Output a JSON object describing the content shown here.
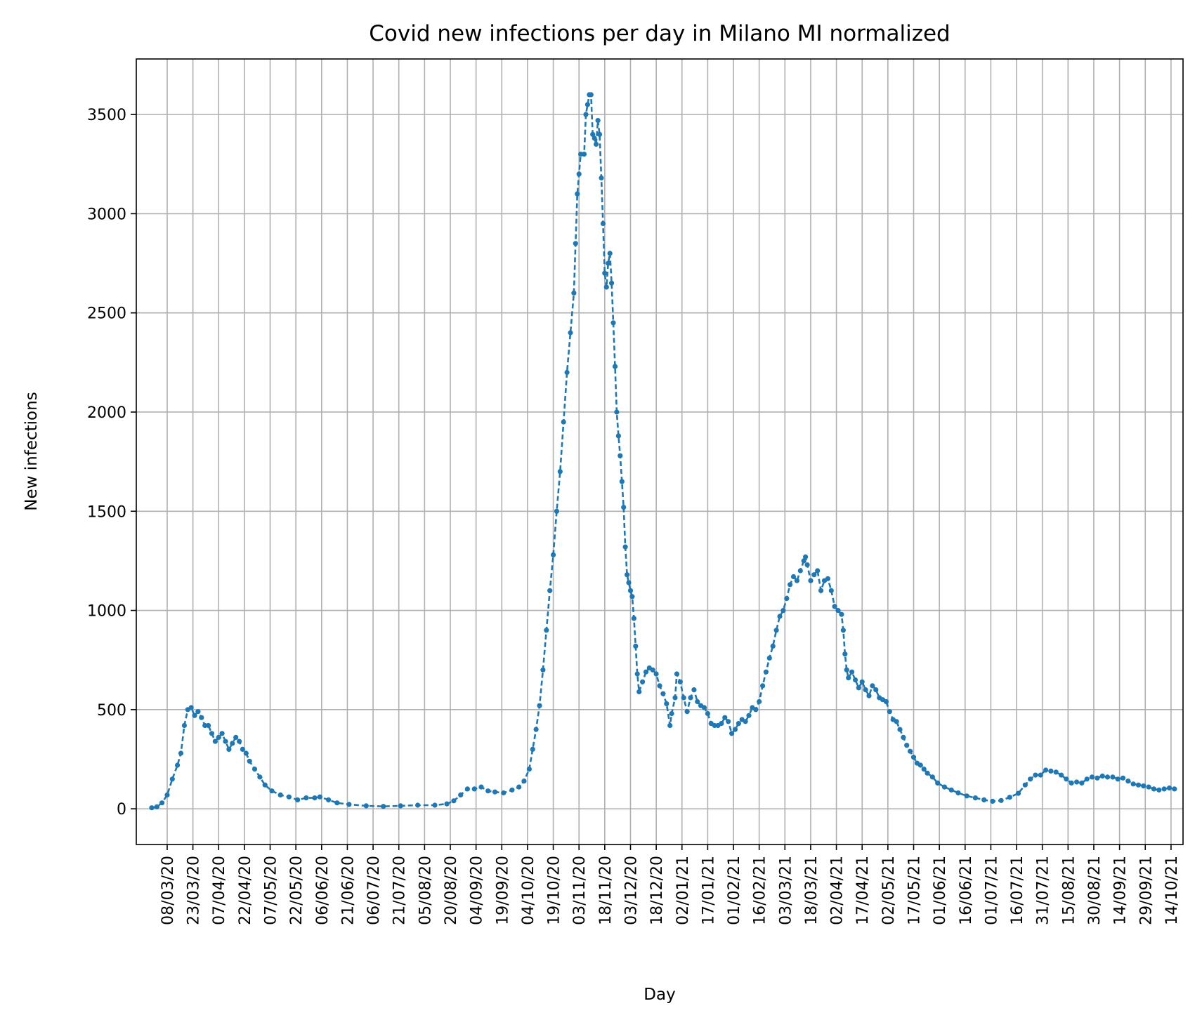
{
  "chart_data": {
    "type": "line",
    "title": "Covid new infections per day in Milano MI normalized",
    "xlabel": "Day",
    "ylabel": "New infections",
    "ylim": [
      -180,
      3780
    ],
    "yticks": [
      0,
      500,
      1000,
      1500,
      2000,
      2500,
      3000,
      3500
    ],
    "x_start_date": "2020-02-28",
    "xlim_days": [
      -9,
      601
    ],
    "grid": true,
    "colors": {
      "series": "#1f77b4"
    },
    "xticks": [
      {
        "day": 9,
        "label": "08/03/20"
      },
      {
        "day": 24,
        "label": "23/03/20"
      },
      {
        "day": 39,
        "label": "07/04/20"
      },
      {
        "day": 54,
        "label": "22/04/20"
      },
      {
        "day": 69,
        "label": "07/05/20"
      },
      {
        "day": 84,
        "label": "22/05/20"
      },
      {
        "day": 99,
        "label": "06/06/20"
      },
      {
        "day": 114,
        "label": "21/06/20"
      },
      {
        "day": 129,
        "label": "06/07/20"
      },
      {
        "day": 144,
        "label": "21/07/20"
      },
      {
        "day": 159,
        "label": "05/08/20"
      },
      {
        "day": 174,
        "label": "20/08/20"
      },
      {
        "day": 189,
        "label": "04/09/20"
      },
      {
        "day": 204,
        "label": "19/09/20"
      },
      {
        "day": 219,
        "label": "04/10/20"
      },
      {
        "day": 234,
        "label": "19/10/20"
      },
      {
        "day": 249,
        "label": "03/11/20"
      },
      {
        "day": 264,
        "label": "18/11/20"
      },
      {
        "day": 279,
        "label": "03/12/20"
      },
      {
        "day": 294,
        "label": "18/12/20"
      },
      {
        "day": 309,
        "label": "02/01/21"
      },
      {
        "day": 324,
        "label": "17/01/21"
      },
      {
        "day": 339,
        "label": "01/02/21"
      },
      {
        "day": 354,
        "label": "16/02/21"
      },
      {
        "day": 369,
        "label": "03/03/21"
      },
      {
        "day": 384,
        "label": "18/03/21"
      },
      {
        "day": 399,
        "label": "02/04/21"
      },
      {
        "day": 414,
        "label": "17/04/21"
      },
      {
        "day": 429,
        "label": "02/05/21"
      },
      {
        "day": 444,
        "label": "17/05/21"
      },
      {
        "day": 459,
        "label": "01/06/21"
      },
      {
        "day": 474,
        "label": "16/06/21"
      },
      {
        "day": 489,
        "label": "01/07/21"
      },
      {
        "day": 504,
        "label": "16/07/21"
      },
      {
        "day": 519,
        "label": "31/07/21"
      },
      {
        "day": 534,
        "label": "15/08/21"
      },
      {
        "day": 549,
        "label": "30/08/21"
      },
      {
        "day": 564,
        "label": "14/09/21"
      },
      {
        "day": 579,
        "label": "29/09/21"
      },
      {
        "day": 594,
        "label": "14/10/21"
      }
    ],
    "series": [
      {
        "name": "Milano MI",
        "points": [
          [
            0,
            5
          ],
          [
            3,
            10
          ],
          [
            6,
            30
          ],
          [
            9,
            70
          ],
          [
            12,
            150
          ],
          [
            15,
            220
          ],
          [
            17,
            280
          ],
          [
            19,
            420
          ],
          [
            21,
            500
          ],
          [
            23,
            510
          ],
          [
            25,
            470
          ],
          [
            27,
            490
          ],
          [
            29,
            460
          ],
          [
            31,
            420
          ],
          [
            33,
            420
          ],
          [
            35,
            380
          ],
          [
            37,
            340
          ],
          [
            39,
            360
          ],
          [
            41,
            380
          ],
          [
            43,
            340
          ],
          [
            45,
            300
          ],
          [
            47,
            330
          ],
          [
            49,
            360
          ],
          [
            51,
            340
          ],
          [
            53,
            300
          ],
          [
            55,
            280
          ],
          [
            57,
            240
          ],
          [
            60,
            200
          ],
          [
            63,
            160
          ],
          [
            66,
            120
          ],
          [
            70,
            90
          ],
          [
            75,
            70
          ],
          [
            80,
            60
          ],
          [
            85,
            45
          ],
          [
            90,
            55
          ],
          [
            95,
            55
          ],
          [
            98,
            60
          ],
          [
            103,
            45
          ],
          [
            108,
            30
          ],
          [
            115,
            22
          ],
          [
            125,
            15
          ],
          [
            135,
            12
          ],
          [
            145,
            15
          ],
          [
            155,
            18
          ],
          [
            165,
            18
          ],
          [
            172,
            25
          ],
          [
            176,
            40
          ],
          [
            180,
            70
          ],
          [
            184,
            100
          ],
          [
            188,
            100
          ],
          [
            192,
            110
          ],
          [
            196,
            90
          ],
          [
            200,
            85
          ],
          [
            205,
            80
          ],
          [
            210,
            95
          ],
          [
            214,
            110
          ],
          [
            217,
            140
          ],
          [
            220,
            200
          ],
          [
            222,
            300
          ],
          [
            224,
            400
          ],
          [
            226,
            520
          ],
          [
            228,
            700
          ],
          [
            230,
            900
          ],
          [
            232,
            1100
          ],
          [
            234,
            1280
          ],
          [
            236,
            1500
          ],
          [
            238,
            1700
          ],
          [
            240,
            1950
          ],
          [
            242,
            2200
          ],
          [
            244,
            2400
          ],
          [
            246,
            2600
          ],
          [
            247,
            2850
          ],
          [
            248,
            3100
          ],
          [
            249,
            3200
          ],
          [
            250,
            3300
          ],
          [
            252,
            3300
          ],
          [
            253,
            3500
          ],
          [
            254,
            3550
          ],
          [
            255,
            3600
          ],
          [
            256,
            3600
          ],
          [
            257,
            3400
          ],
          [
            258,
            3380
          ],
          [
            259,
            3350
          ],
          [
            260,
            3470
          ],
          [
            261,
            3400
          ],
          [
            262,
            3180
          ],
          [
            263,
            2950
          ],
          [
            264,
            2700
          ],
          [
            265,
            2630
          ],
          [
            266,
            2750
          ],
          [
            267,
            2800
          ],
          [
            268,
            2650
          ],
          [
            269,
            2450
          ],
          [
            270,
            2230
          ],
          [
            271,
            2000
          ],
          [
            272,
            1880
          ],
          [
            273,
            1780
          ],
          [
            274,
            1650
          ],
          [
            275,
            1520
          ],
          [
            276,
            1320
          ],
          [
            277,
            1180
          ],
          [
            278,
            1140
          ],
          [
            279,
            1100
          ],
          [
            280,
            1070
          ],
          [
            281,
            960
          ],
          [
            282,
            820
          ],
          [
            283,
            680
          ],
          [
            284,
            590
          ],
          [
            286,
            640
          ],
          [
            288,
            690
          ],
          [
            290,
            710
          ],
          [
            292,
            700
          ],
          [
            294,
            680
          ],
          [
            296,
            620
          ],
          [
            298,
            580
          ],
          [
            300,
            530
          ],
          [
            302,
            420
          ],
          [
            303,
            480
          ],
          [
            305,
            560
          ],
          [
            306,
            680
          ],
          [
            308,
            640
          ],
          [
            310,
            560
          ],
          [
            312,
            490
          ],
          [
            314,
            560
          ],
          [
            316,
            600
          ],
          [
            318,
            540
          ],
          [
            320,
            520
          ],
          [
            322,
            510
          ],
          [
            324,
            480
          ],
          [
            326,
            430
          ],
          [
            328,
            420
          ],
          [
            330,
            420
          ],
          [
            332,
            430
          ],
          [
            334,
            460
          ],
          [
            336,
            440
          ],
          [
            338,
            380
          ],
          [
            340,
            400
          ],
          [
            342,
            430
          ],
          [
            344,
            450
          ],
          [
            346,
            440
          ],
          [
            348,
            470
          ],
          [
            350,
            510
          ],
          [
            352,
            500
          ],
          [
            354,
            540
          ],
          [
            356,
            620
          ],
          [
            358,
            690
          ],
          [
            360,
            760
          ],
          [
            362,
            820
          ],
          [
            364,
            900
          ],
          [
            366,
            970
          ],
          [
            368,
            1000
          ],
          [
            370,
            1060
          ],
          [
            372,
            1130
          ],
          [
            374,
            1170
          ],
          [
            376,
            1150
          ],
          [
            378,
            1200
          ],
          [
            380,
            1250
          ],
          [
            381,
            1270
          ],
          [
            382,
            1230
          ],
          [
            384,
            1150
          ],
          [
            386,
            1180
          ],
          [
            388,
            1200
          ],
          [
            390,
            1100
          ],
          [
            392,
            1150
          ],
          [
            394,
            1160
          ],
          [
            396,
            1100
          ],
          [
            398,
            1020
          ],
          [
            400,
            1000
          ],
          [
            402,
            980
          ],
          [
            403,
            900
          ],
          [
            404,
            780
          ],
          [
            405,
            700
          ],
          [
            406,
            660
          ],
          [
            408,
            690
          ],
          [
            410,
            650
          ],
          [
            412,
            610
          ],
          [
            414,
            640
          ],
          [
            416,
            600
          ],
          [
            418,
            570
          ],
          [
            420,
            620
          ],
          [
            422,
            600
          ],
          [
            424,
            560
          ],
          [
            426,
            550
          ],
          [
            428,
            540
          ],
          [
            430,
            490
          ],
          [
            432,
            450
          ],
          [
            434,
            440
          ],
          [
            436,
            400
          ],
          [
            438,
            360
          ],
          [
            440,
            320
          ],
          [
            442,
            290
          ],
          [
            444,
            260
          ],
          [
            446,
            230
          ],
          [
            448,
            220
          ],
          [
            450,
            200
          ],
          [
            452,
            180
          ],
          [
            455,
            160
          ],
          [
            458,
            130
          ],
          [
            462,
            110
          ],
          [
            466,
            95
          ],
          [
            470,
            80
          ],
          [
            475,
            65
          ],
          [
            480,
            55
          ],
          [
            485,
            45
          ],
          [
            490,
            38
          ],
          [
            495,
            42
          ],
          [
            500,
            58
          ],
          [
            505,
            78
          ],
          [
            509,
            120
          ],
          [
            512,
            150
          ],
          [
            515,
            170
          ],
          [
            518,
            170
          ],
          [
            521,
            195
          ],
          [
            524,
            190
          ],
          [
            527,
            185
          ],
          [
            530,
            170
          ],
          [
            533,
            150
          ],
          [
            536,
            130
          ],
          [
            539,
            135
          ],
          [
            542,
            130
          ],
          [
            545,
            150
          ],
          [
            548,
            160
          ],
          [
            551,
            155
          ],
          [
            554,
            165
          ],
          [
            557,
            160
          ],
          [
            560,
            160
          ],
          [
            563,
            150
          ],
          [
            566,
            155
          ],
          [
            569,
            140
          ],
          [
            572,
            125
          ],
          [
            575,
            120
          ],
          [
            578,
            115
          ],
          [
            581,
            110
          ],
          [
            584,
            100
          ],
          [
            587,
            95
          ],
          [
            590,
            100
          ],
          [
            593,
            105
          ],
          [
            596,
            100
          ]
        ]
      }
    ]
  }
}
